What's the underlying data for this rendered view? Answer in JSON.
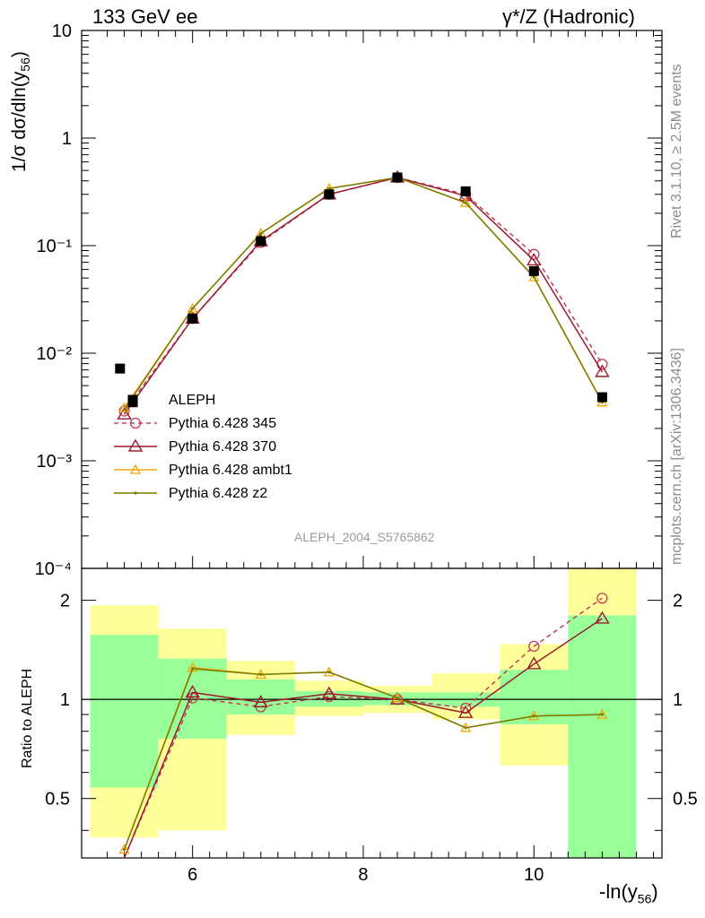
{
  "header": {
    "left_title": "133 GeV ee",
    "right_title": "γ*/Z (Hadronic)"
  },
  "side_labels": {
    "upper": "Rivet 3.1.10, ≥ 2.5M events",
    "lower": "mcplots.cern.ch [arXiv:1306.3436]"
  },
  "analysis_id": "ALEPH_2004_S5765862",
  "axes": {
    "ylabel_main_prefix": "1/σ  dσ/dln(y",
    "ylabel_main_sub": "56",
    "ylabel_main_suffix": ")",
    "ylabel_ratio": "Ratio to ALEPH",
    "xlabel_prefix": "-ln(y",
    "xlabel_sub": "56",
    "xlabel_suffix": ")",
    "x_ticks": [
      "6",
      "8",
      "10"
    ],
    "y_ticks_main": [
      "10",
      "1",
      "10⁻¹",
      "10⁻²",
      "10⁻³",
      "10⁻⁴"
    ],
    "y_ticks_ratio": [
      "2",
      "1",
      "0.5"
    ]
  },
  "legend": [
    {
      "label": "ALEPH",
      "color": "#000000",
      "marker": "square"
    },
    {
      "label": "Pythia 6.428 345",
      "color": "#c0405a",
      "marker": "circle"
    },
    {
      "label": "Pythia 6.428 370",
      "color": "#9b1c2e",
      "marker": "triangle"
    },
    {
      "label": "Pythia 6.428 ambt1",
      "color": "#f0a800",
      "marker": "triangle"
    },
    {
      "label": "Pythia 6.428 z2",
      "color": "#7a7a00",
      "marker": "dot"
    }
  ],
  "chart_data": [
    {
      "type": "line",
      "panel": "main",
      "x_scale": "linear",
      "y_scale": "log",
      "xlim": [
        4.7,
        11.5
      ],
      "ylim": [
        0.0001,
        10
      ],
      "x": [
        5.2,
        6.0,
        6.8,
        7.6,
        8.4,
        9.2,
        10.0,
        10.8
      ],
      "data": {
        "name": "ALEPH",
        "x": [
          5.15,
          5.3,
          6.0,
          6.8,
          7.6,
          8.4,
          9.2,
          10.0,
          10.8
        ],
        "values": [
          0.0072,
          0.0035,
          0.021,
          0.11,
          0.3,
          0.43,
          0.32,
          0.058,
          0.0039
        ]
      },
      "series": [
        {
          "name": "Pythia 6.428 345",
          "values": [
            0.0029,
            0.021,
            0.107,
            0.3,
            0.43,
            0.3,
            0.083,
            0.0079
          ]
        },
        {
          "name": "Pythia 6.428 370",
          "values": [
            0.0027,
            0.021,
            0.11,
            0.3,
            0.43,
            0.29,
            0.073,
            0.0067
          ]
        },
        {
          "name": "Pythia 6.428 ambt1",
          "values": [
            0.0031,
            0.026,
            0.13,
            0.34,
            0.43,
            0.25,
            0.051,
            0.0035
          ]
        },
        {
          "name": "Pythia 6.428 z2",
          "values": [
            0.003,
            0.026,
            0.13,
            0.34,
            0.43,
            0.25,
            0.051,
            0.0035
          ]
        }
      ]
    },
    {
      "type": "line",
      "panel": "ratio",
      "x_scale": "linear",
      "y_scale": "log",
      "xlim": [
        4.7,
        11.5
      ],
      "ylim": [
        0.33,
        2.5
      ],
      "bands": {
        "x_edges": [
          4.8,
          5.6,
          6.4,
          7.2,
          8.0,
          8.8,
          9.6,
          10.4,
          11.2
        ],
        "stat_low": [
          0.54,
          0.76,
          0.9,
          0.95,
          0.96,
          0.95,
          0.84,
          0.33
        ],
        "stat_high": [
          1.57,
          1.33,
          1.15,
          1.06,
          1.05,
          1.05,
          1.23,
          1.8
        ],
        "total_low": [
          0.38,
          0.4,
          0.78,
          0.89,
          0.91,
          0.87,
          0.63,
          0.33
        ],
        "total_high": [
          1.93,
          1.64,
          1.31,
          1.14,
          1.1,
          1.2,
          1.47,
          2.5
        ]
      },
      "x": [
        5.2,
        6.0,
        6.8,
        7.6,
        8.4,
        9.2,
        10.0,
        10.8
      ],
      "series": [
        {
          "name": "Pythia 6.428 345",
          "values": [
            0.3,
            1.01,
            0.95,
            1.02,
            1.0,
            0.94,
            1.45,
            2.03
          ]
        },
        {
          "name": "Pythia 6.428 370",
          "values": [
            0.32,
            1.05,
            0.98,
            1.04,
            1.0,
            0.91,
            1.28,
            1.76
          ]
        },
        {
          "name": "Pythia 6.428 ambt1",
          "values": [
            0.35,
            1.25,
            1.19,
            1.21,
            1.01,
            0.82,
            0.89,
            0.9
          ]
        },
        {
          "name": "Pythia 6.428 z2",
          "values": [
            0.35,
            1.24,
            1.19,
            1.21,
            1.01,
            0.82,
            0.89,
            0.9
          ]
        }
      ],
      "reference_line": 1
    }
  ]
}
